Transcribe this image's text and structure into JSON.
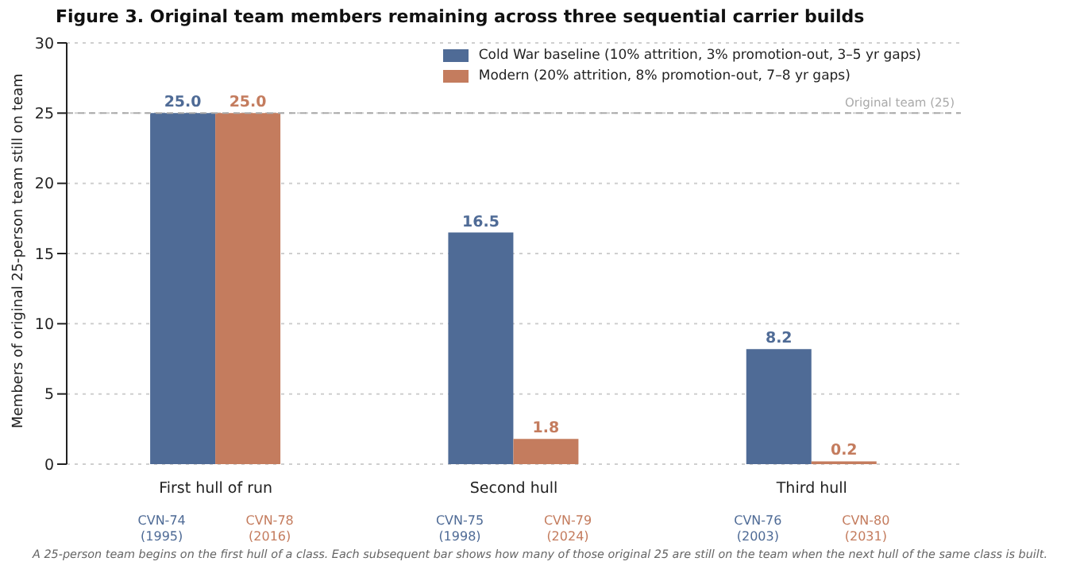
{
  "chart_data": {
    "type": "bar",
    "title": "Figure 3. Original team members remaining across three sequential carrier builds",
    "ylabel": "Members of original 25-person team still on team",
    "categories": [
      "First hull of run",
      "Second hull",
      "Third hull"
    ],
    "series": [
      {
        "name": "Cold War baseline (10% attrition, 3% promotion-out, 3–5 yr gaps)",
        "color": "#4f6b96",
        "values": [
          25.0,
          16.5,
          8.2
        ],
        "value_labels": [
          "25.0",
          "16.5",
          "8.2"
        ]
      },
      {
        "name": "Modern (20% attrition, 8% promotion-out, 7–8 yr gaps)",
        "color": "#c47c5e",
        "values": [
          25.0,
          1.8,
          0.2
        ],
        "value_labels": [
          "25.0",
          "1.8",
          "0.2"
        ]
      }
    ],
    "ylim": [
      0,
      30
    ],
    "yticks": [
      0,
      5,
      10,
      15,
      20,
      25,
      30
    ],
    "grid": "y",
    "legend": "top right",
    "ref_lines": [
      {
        "axis": "y",
        "value": 25,
        "label": "Original team (25)",
        "color": "#aaaaaa",
        "line_style": "dashed"
      }
    ],
    "annotations": [
      "CVN-74 (1995)",
      "CVN-78 (2016)",
      "CVN-75 (1998)",
      "CVN-79 (2024)",
      "CVN-76 (2003)",
      "CVN-80 (2031)",
      "A 25-person team begins on the first hull of a class. Each subsequent bar shows how many of those original 25 are still on the team when the next hull of the same class is built."
    ]
  }
}
